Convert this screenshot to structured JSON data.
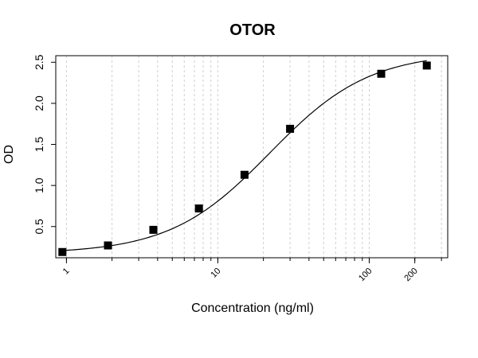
{
  "chart_data": {
    "type": "scatter",
    "title": "OTOR",
    "xlabel": "Concentration (ng/ml)",
    "ylabel": "OD",
    "x_scale": "log",
    "xlim": [
      0.85,
      330
    ],
    "ylim": [
      0.12,
      2.58
    ],
    "x_ticks": [
      1,
      10,
      100,
      200
    ],
    "x_tick_labels": [
      "1",
      "10",
      "100",
      "200"
    ],
    "y_ticks": [
      0.5,
      1.0,
      1.5,
      2.0,
      2.5
    ],
    "y_tick_labels": [
      "0.5",
      "1.0",
      "1.5",
      "2.0",
      "2.5"
    ],
    "grid": true,
    "series": [
      {
        "x": [
          0.94,
          1.88,
          3.75,
          7.5,
          15,
          30,
          120,
          240
        ],
        "values": [
          0.19,
          0.27,
          0.46,
          0.72,
          1.13,
          1.69,
          2.36,
          2.46
        ],
        "marker": "square",
        "color": "#000000"
      }
    ],
    "fit_curve": {
      "model": "4PL",
      "bottom": 0.17,
      "top": 2.62,
      "ec50": 22,
      "hill": 1.32
    }
  }
}
